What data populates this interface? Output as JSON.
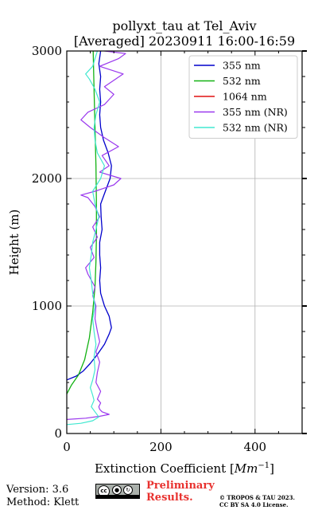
{
  "chart_data": {
    "type": "line",
    "title": "pollyxt_tau at Tel_Aviv",
    "subtitle": "[Averaged] 20230911 16:00-16:59",
    "xlabel": "Extinction Coefficient",
    "xlabel_unit": "Mm",
    "xlabel_unit_exp": "−1",
    "ylabel": "Height (m)",
    "xlim": [
      0,
      500
    ],
    "ylim": [
      0,
      3000
    ],
    "x_ticks": [
      0,
      200,
      400
    ],
    "y_ticks": [
      0,
      1000,
      2000,
      3000
    ],
    "x_tick_labels": [
      "0",
      "200",
      "400"
    ],
    "y_tick_labels": [
      "0",
      "1000",
      "2000",
      "3000"
    ],
    "grid": true,
    "legend_position": "top-right",
    "series": [
      {
        "name": "355 nm",
        "color": "#0000cc",
        "style": "smooth",
        "points": [
          [
            0,
            420
          ],
          [
            20,
            450
          ],
          [
            35,
            490
          ],
          [
            50,
            550
          ],
          [
            65,
            620
          ],
          [
            80,
            700
          ],
          [
            90,
            780
          ],
          [
            95,
            830
          ],
          [
            90,
            920
          ],
          [
            80,
            1000
          ],
          [
            72,
            1100
          ],
          [
            70,
            1200
          ],
          [
            72,
            1300
          ],
          [
            70,
            1400
          ],
          [
            70,
            1500
          ],
          [
            75,
            1600
          ],
          [
            73,
            1700
          ],
          [
            72,
            1800
          ],
          [
            82,
            1900
          ],
          [
            92,
            2000
          ],
          [
            95,
            2100
          ],
          [
            88,
            2200
          ],
          [
            78,
            2300
          ],
          [
            72,
            2400
          ],
          [
            70,
            2500
          ],
          [
            72,
            2600
          ],
          [
            70,
            2700
          ],
          [
            72,
            2800
          ],
          [
            68,
            2900
          ],
          [
            72,
            3000
          ]
        ]
      },
      {
        "name": "532 nm",
        "color": "#13b213",
        "style": "smooth",
        "points": [
          [
            0,
            310
          ],
          [
            10,
            380
          ],
          [
            25,
            460
          ],
          [
            38,
            580
          ],
          [
            48,
            750
          ],
          [
            55,
            950
          ],
          [
            60,
            1150
          ],
          [
            62,
            1350
          ],
          [
            63,
            1550
          ],
          [
            63,
            1800
          ],
          [
            62,
            2100
          ],
          [
            60,
            2400
          ],
          [
            58,
            2700
          ],
          [
            56,
            3000
          ]
        ]
      },
      {
        "name": "1064 nm",
        "color": "#e01010",
        "style": "smooth",
        "points": []
      },
      {
        "name": "355 nm (NR)",
        "color": "#9a38ee",
        "style": "noisy",
        "points": [
          [
            0,
            110
          ],
          [
            40,
            120
          ],
          [
            70,
            135
          ],
          [
            90,
            150
          ],
          [
            75,
            170
          ],
          [
            70,
            190
          ],
          [
            68,
            210
          ],
          [
            72,
            240
          ],
          [
            65,
            270
          ],
          [
            72,
            330
          ],
          [
            62,
            400
          ],
          [
            65,
            480
          ],
          [
            70,
            560
          ],
          [
            62,
            640
          ],
          [
            70,
            720
          ],
          [
            65,
            800
          ],
          [
            60,
            900
          ],
          [
            62,
            1000
          ],
          [
            55,
            1080
          ],
          [
            60,
            1150
          ],
          [
            45,
            1250
          ],
          [
            40,
            1300
          ],
          [
            58,
            1380
          ],
          [
            50,
            1460
          ],
          [
            65,
            1540
          ],
          [
            55,
            1620
          ],
          [
            70,
            1700
          ],
          [
            60,
            1780
          ],
          [
            45,
            1850
          ],
          [
            30,
            1870
          ],
          [
            60,
            1900
          ],
          [
            100,
            1950
          ],
          [
            115,
            2000
          ],
          [
            70,
            2050
          ],
          [
            90,
            2100
          ],
          [
            75,
            2180
          ],
          [
            110,
            2250
          ],
          [
            80,
            2320
          ],
          [
            50,
            2400
          ],
          [
            30,
            2460
          ],
          [
            45,
            2520
          ],
          [
            80,
            2580
          ],
          [
            100,
            2660
          ],
          [
            80,
            2720
          ],
          [
            120,
            2820
          ],
          [
            70,
            2880
          ],
          [
            110,
            2940
          ],
          [
            125,
            2980
          ],
          [
            80,
            3000
          ]
        ]
      },
      {
        "name": "532 nm (NR)",
        "color": "#40e8d0",
        "style": "noisy",
        "points": [
          [
            0,
            70
          ],
          [
            30,
            80
          ],
          [
            55,
            100
          ],
          [
            68,
            130
          ],
          [
            60,
            170
          ],
          [
            52,
            210
          ],
          [
            58,
            260
          ],
          [
            55,
            300
          ],
          [
            50,
            360
          ],
          [
            55,
            420
          ],
          [
            60,
            500
          ],
          [
            58,
            600
          ],
          [
            62,
            700
          ],
          [
            58,
            800
          ],
          [
            55,
            900
          ],
          [
            60,
            1000
          ],
          [
            55,
            1100
          ],
          [
            52,
            1200
          ],
          [
            48,
            1300
          ],
          [
            52,
            1400
          ],
          [
            55,
            1500
          ],
          [
            62,
            1600
          ],
          [
            68,
            1700
          ],
          [
            60,
            1800
          ],
          [
            55,
            1900
          ],
          [
            72,
            2000
          ],
          [
            80,
            2100
          ],
          [
            65,
            2200
          ],
          [
            60,
            2300
          ],
          [
            58,
            2400
          ],
          [
            62,
            2500
          ],
          [
            70,
            2600
          ],
          [
            60,
            2700
          ],
          [
            48,
            2780
          ],
          [
            40,
            2820
          ],
          [
            55,
            2880
          ],
          [
            60,
            2940
          ],
          [
            65,
            3000
          ]
        ]
      }
    ]
  },
  "footer": {
    "version": "Version: 3.6",
    "method": "Method: Klett",
    "cc_label": "cc",
    "by_label": "BY",
    "sa_label": "SA",
    "preliminary_line1": "Preliminary",
    "preliminary_line2": "Results.",
    "copyright_line1": "© TROPOS & TAU 2023.",
    "copyright_line2": "CC BY SA 4.0 License."
  }
}
